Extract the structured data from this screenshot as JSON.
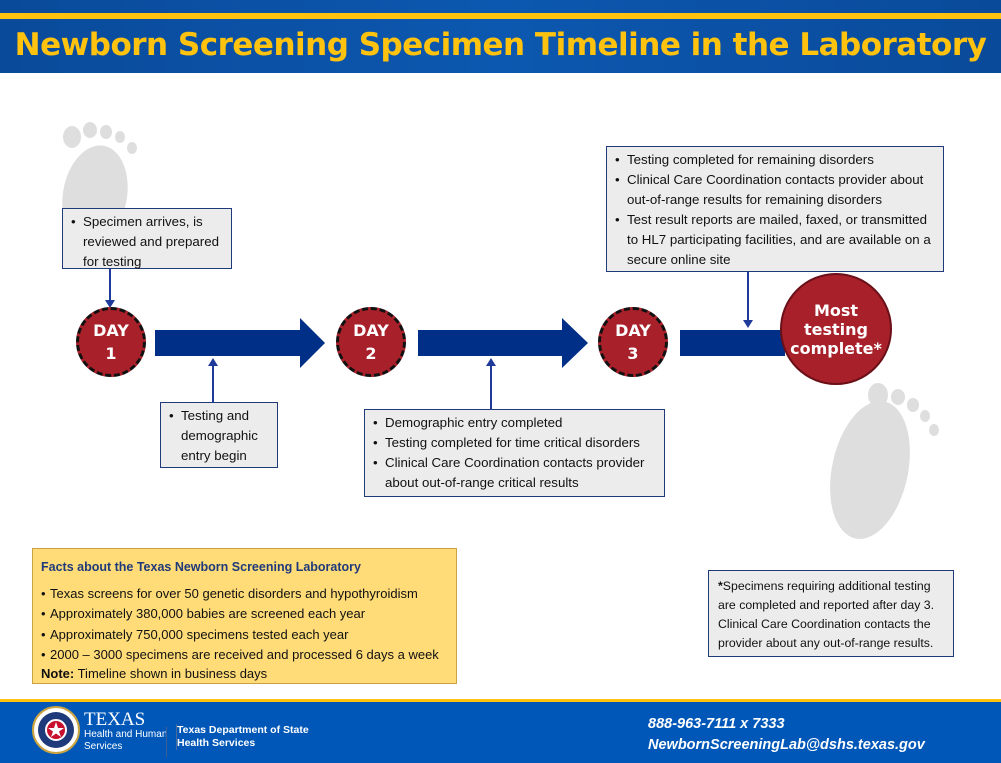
{
  "title": "Newborn Screening Specimen Timeline in the Laboratory",
  "colors": {
    "header_blue": "#0c58b0",
    "accent_yellow": "#ffc20e",
    "arrow_navy": "#002f87",
    "day_red": "#a8202a",
    "box_gray": "#ececec",
    "facts_yellow": "#ffdc78"
  },
  "days": [
    {
      "label": "DAY",
      "num": "1"
    },
    {
      "label": "DAY",
      "num": "2"
    },
    {
      "label": "DAY",
      "num": "3"
    }
  ],
  "final": {
    "line1": "Most",
    "line2": "testing",
    "line3": "complete*"
  },
  "boxes": {
    "day1_top": [
      "Specimen arrives, is reviewed and prepared for testing"
    ],
    "day1_bottom": [
      "Testing and demographic entry begin"
    ],
    "day2_bottom": [
      "Demographic entry completed",
      "Testing completed for time critical disorders",
      "Clinical Care Coordination contacts provider about out-of-range critical results"
    ],
    "day3_top": [
      "Testing completed for remaining disorders",
      "Clinical Care Coordination contacts provider about out-of-range results for remaining disorders",
      "Test result reports are mailed, faxed, or transmitted to HL7 participating facilities, and are available on a secure online site"
    ]
  },
  "facts": {
    "heading": "Facts about the Texas Newborn Screening Laboratory",
    "items": [
      "Texas screens for over 50 genetic disorders and hypothyroidism",
      "Approximately 380,000 babies are screened each year",
      "Approximately 750,000 specimens tested each year",
      "2000 – 3000 specimens are received and processed 6 days a week"
    ],
    "note_label": "Note:",
    "note_text": " Timeline shown in business days"
  },
  "footnote": {
    "star": "*",
    "text": "Specimens requiring additional testing are completed and reported after day 3. Clinical Care Coordination contacts the provider about any out-of-range results."
  },
  "footer": {
    "hhs_big": "TEXAS",
    "hhs_line2": "Health and Human",
    "hhs_line3": "Services",
    "dshs_line1": "Texas Department of State",
    "dshs_line2": "Health Services",
    "phone": "888-963-7111 x 7333",
    "email": "NewbornScreeningLab@dshs.texas.gov"
  }
}
